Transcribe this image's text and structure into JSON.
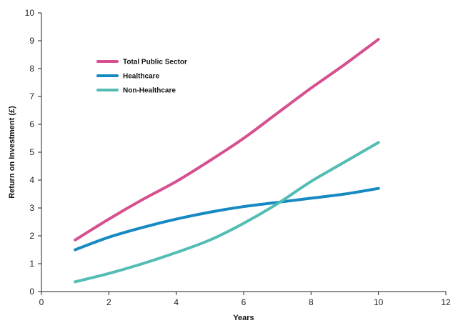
{
  "chart_data": {
    "type": "line",
    "xlabel": "Years",
    "ylabel": "Return on Investment (£)",
    "xlim": [
      0,
      12
    ],
    "ylim": [
      0,
      10
    ],
    "xticks": [
      0,
      2,
      4,
      6,
      8,
      10,
      12
    ],
    "yticks": [
      0,
      1,
      2,
      3,
      4,
      5,
      6,
      7,
      8,
      9,
      10
    ],
    "grid": false,
    "legend": "top-left",
    "series": [
      {
        "name": "Total Public Sector",
        "color": "#d6508f",
        "points": [
          [
            1,
            1.85
          ],
          [
            2,
            2.6
          ],
          [
            3,
            3.3
          ],
          [
            4,
            3.95
          ],
          [
            5,
            4.7
          ],
          [
            6,
            5.5
          ],
          [
            7,
            6.4
          ],
          [
            8,
            7.3
          ],
          [
            9,
            8.15
          ],
          [
            10,
            9.05
          ]
        ]
      },
      {
        "name": "Healthcare",
        "color": "#1689c2",
        "points": [
          [
            1,
            1.5
          ],
          [
            2,
            1.95
          ],
          [
            3,
            2.3
          ],
          [
            4,
            2.6
          ],
          [
            5,
            2.85
          ],
          [
            6,
            3.05
          ],
          [
            7,
            3.2
          ],
          [
            8,
            3.35
          ],
          [
            9,
            3.5
          ],
          [
            10,
            3.7
          ]
        ]
      },
      {
        "name": "Non-Healthcare",
        "color": "#53bdb5",
        "points": [
          [
            1,
            0.35
          ],
          [
            2,
            0.65
          ],
          [
            3,
            1.0
          ],
          [
            4,
            1.4
          ],
          [
            5,
            1.85
          ],
          [
            6,
            2.45
          ],
          [
            7,
            3.15
          ],
          [
            8,
            3.95
          ],
          [
            9,
            4.65
          ],
          [
            10,
            5.35
          ]
        ]
      }
    ]
  }
}
